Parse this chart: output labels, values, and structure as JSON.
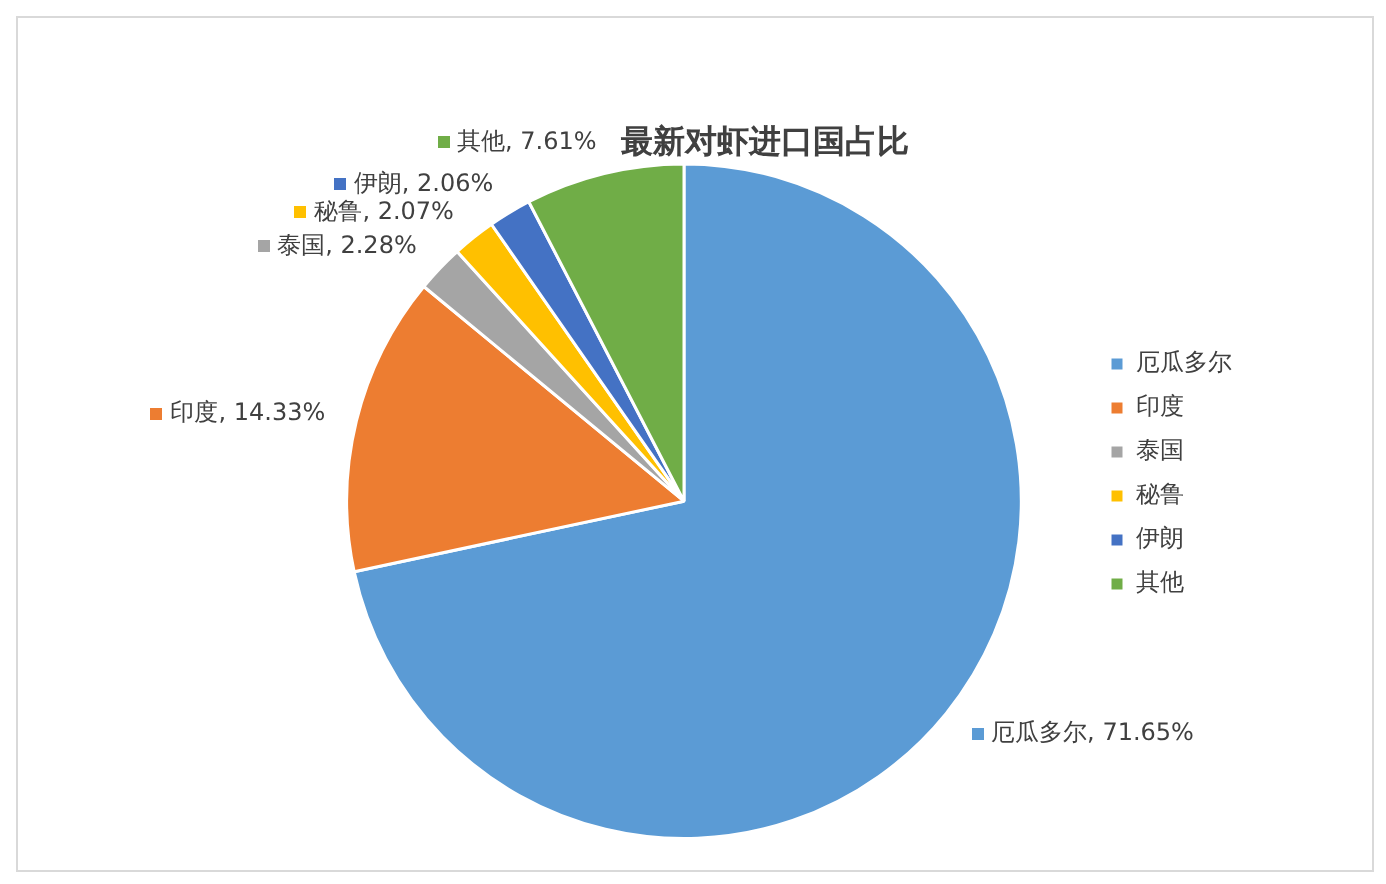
{
  "chart_data": {
    "type": "pie",
    "title": "最新对虾进口国占比",
    "categories": [
      "厄瓜多尔",
      "印度",
      "泰国",
      "秘鲁",
      "伊朗",
      "其他"
    ],
    "values": [
      71.65,
      14.33,
      2.28,
      2.07,
      2.06,
      7.61
    ],
    "colors": [
      "#5b9bd5",
      "#ed7d31",
      "#a5a5a5",
      "#ffc000",
      "#4472c4",
      "#70ad47"
    ],
    "value_labels": [
      "厄瓜多尔, 71.65%",
      "印度, 14.33%",
      "泰国, 2.28%",
      "秘鲁, 2.07%",
      "伊朗, 2.06%",
      "其他, 7.61%"
    ],
    "legend": "right"
  }
}
